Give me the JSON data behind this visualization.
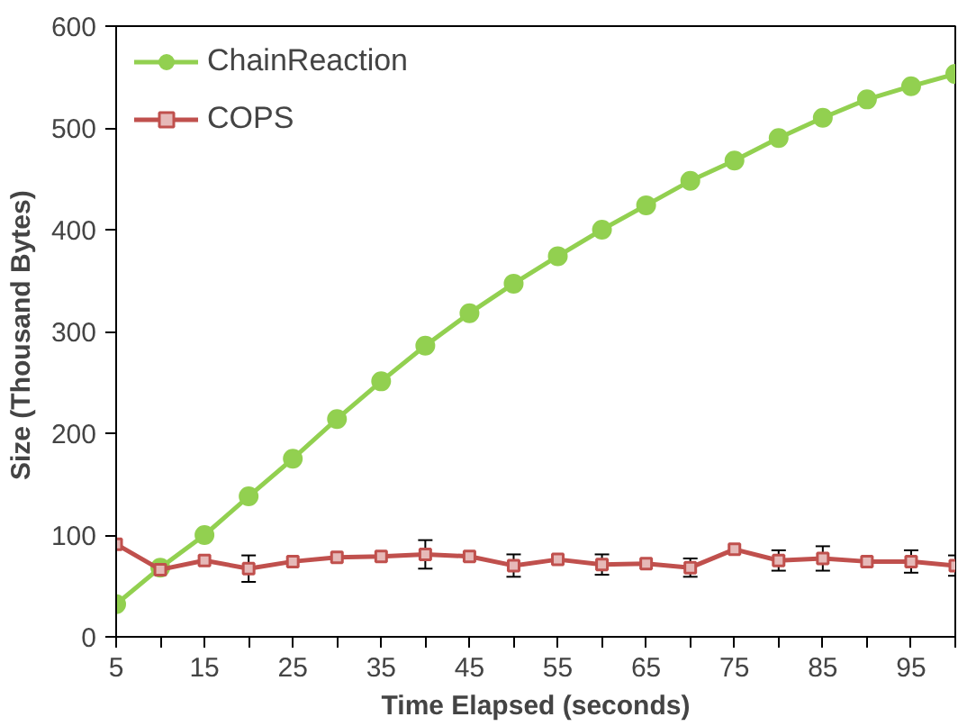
{
  "chart_data": {
    "type": "line",
    "xlabel": "Time Elapsed (seconds)",
    "ylabel": "Size  (Thousand Bytes)",
    "x": [
      5,
      10,
      15,
      20,
      25,
      30,
      35,
      40,
      45,
      50,
      55,
      60,
      65,
      70,
      75,
      80,
      85,
      90,
      95,
      100
    ],
    "series": [
      {
        "name": "ChainReaction",
        "color": "#92d050",
        "marker": "circle",
        "values": [
          32,
          68,
          100,
          138,
          175,
          214,
          251,
          286,
          318,
          347,
          374,
          400,
          424,
          448,
          468,
          490,
          510,
          528,
          541,
          553
        ]
      },
      {
        "name": "COPS",
        "color": "#c0504d",
        "marker": "square",
        "values": [
          91,
          66,
          75,
          67,
          74,
          78,
          79,
          81,
          79,
          70,
          76,
          71,
          72,
          68,
          86,
          75,
          77,
          74,
          74,
          70
        ],
        "errors": [
          null,
          null,
          null,
          13,
          null,
          null,
          null,
          14,
          null,
          11,
          null,
          10,
          null,
          9,
          null,
          10,
          12,
          null,
          11,
          10
        ]
      }
    ],
    "xlim": [
      5,
      100
    ],
    "ylim": [
      0,
      600
    ],
    "xticks": [
      5,
      {
        "value": 10,
        "label": null
      },
      15,
      {
        "value": 20,
        "label": null
      },
      25,
      {
        "value": 30,
        "label": null
      },
      35,
      {
        "value": 40,
        "label": null
      },
      45,
      {
        "value": 50,
        "label": null
      },
      55,
      {
        "value": 60,
        "label": null
      },
      65,
      {
        "value": 70,
        "label": null
      },
      75,
      {
        "value": 80,
        "label": null
      },
      85,
      {
        "value": 90,
        "label": null
      },
      95,
      {
        "value": 100,
        "label": null
      }
    ],
    "yticks": [
      0,
      100,
      200,
      300,
      400,
      500,
      600
    ],
    "grid": false,
    "legend": "top left"
  }
}
